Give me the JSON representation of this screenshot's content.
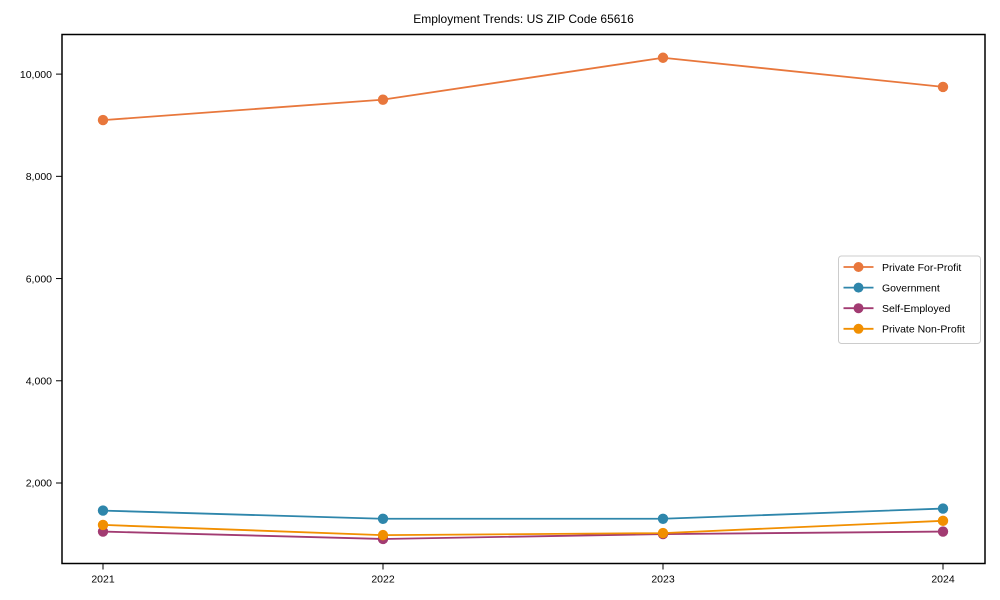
{
  "chart_data": {
    "type": "line",
    "title": "Employment Trends: US ZIP Code 65616",
    "xlabel": "",
    "ylabel": "",
    "categories": [
      "2021",
      "2022",
      "2023",
      "2024"
    ],
    "series": [
      {
        "name": "Private For-Profit",
        "color": "#e8773c",
        "values": [
          9100,
          9500,
          10320,
          9750
        ]
      },
      {
        "name": "Government",
        "color": "#2e86ab",
        "values": [
          1460,
          1300,
          1300,
          1500
        ]
      },
      {
        "name": "Self-Employed",
        "color": "#a23b72",
        "values": [
          1050,
          905,
          1000,
          1050
        ]
      },
      {
        "name": "Private Non-Profit",
        "color": "#f18f01",
        "values": [
          1180,
          980,
          1020,
          1260
        ]
      }
    ],
    "yticks": [
      2000,
      4000,
      6000,
      8000,
      10000
    ],
    "ytick_labels": [
      "2,000",
      "4,000",
      "6,000",
      "8,000",
      "10,000"
    ],
    "ylim": [
      425,
      10775
    ],
    "grid": false,
    "legend_position": "center-right",
    "marker": "circle",
    "frame_color": "#000000",
    "legend_border_color": "#cccccc",
    "legend_background": "#ffffff"
  }
}
